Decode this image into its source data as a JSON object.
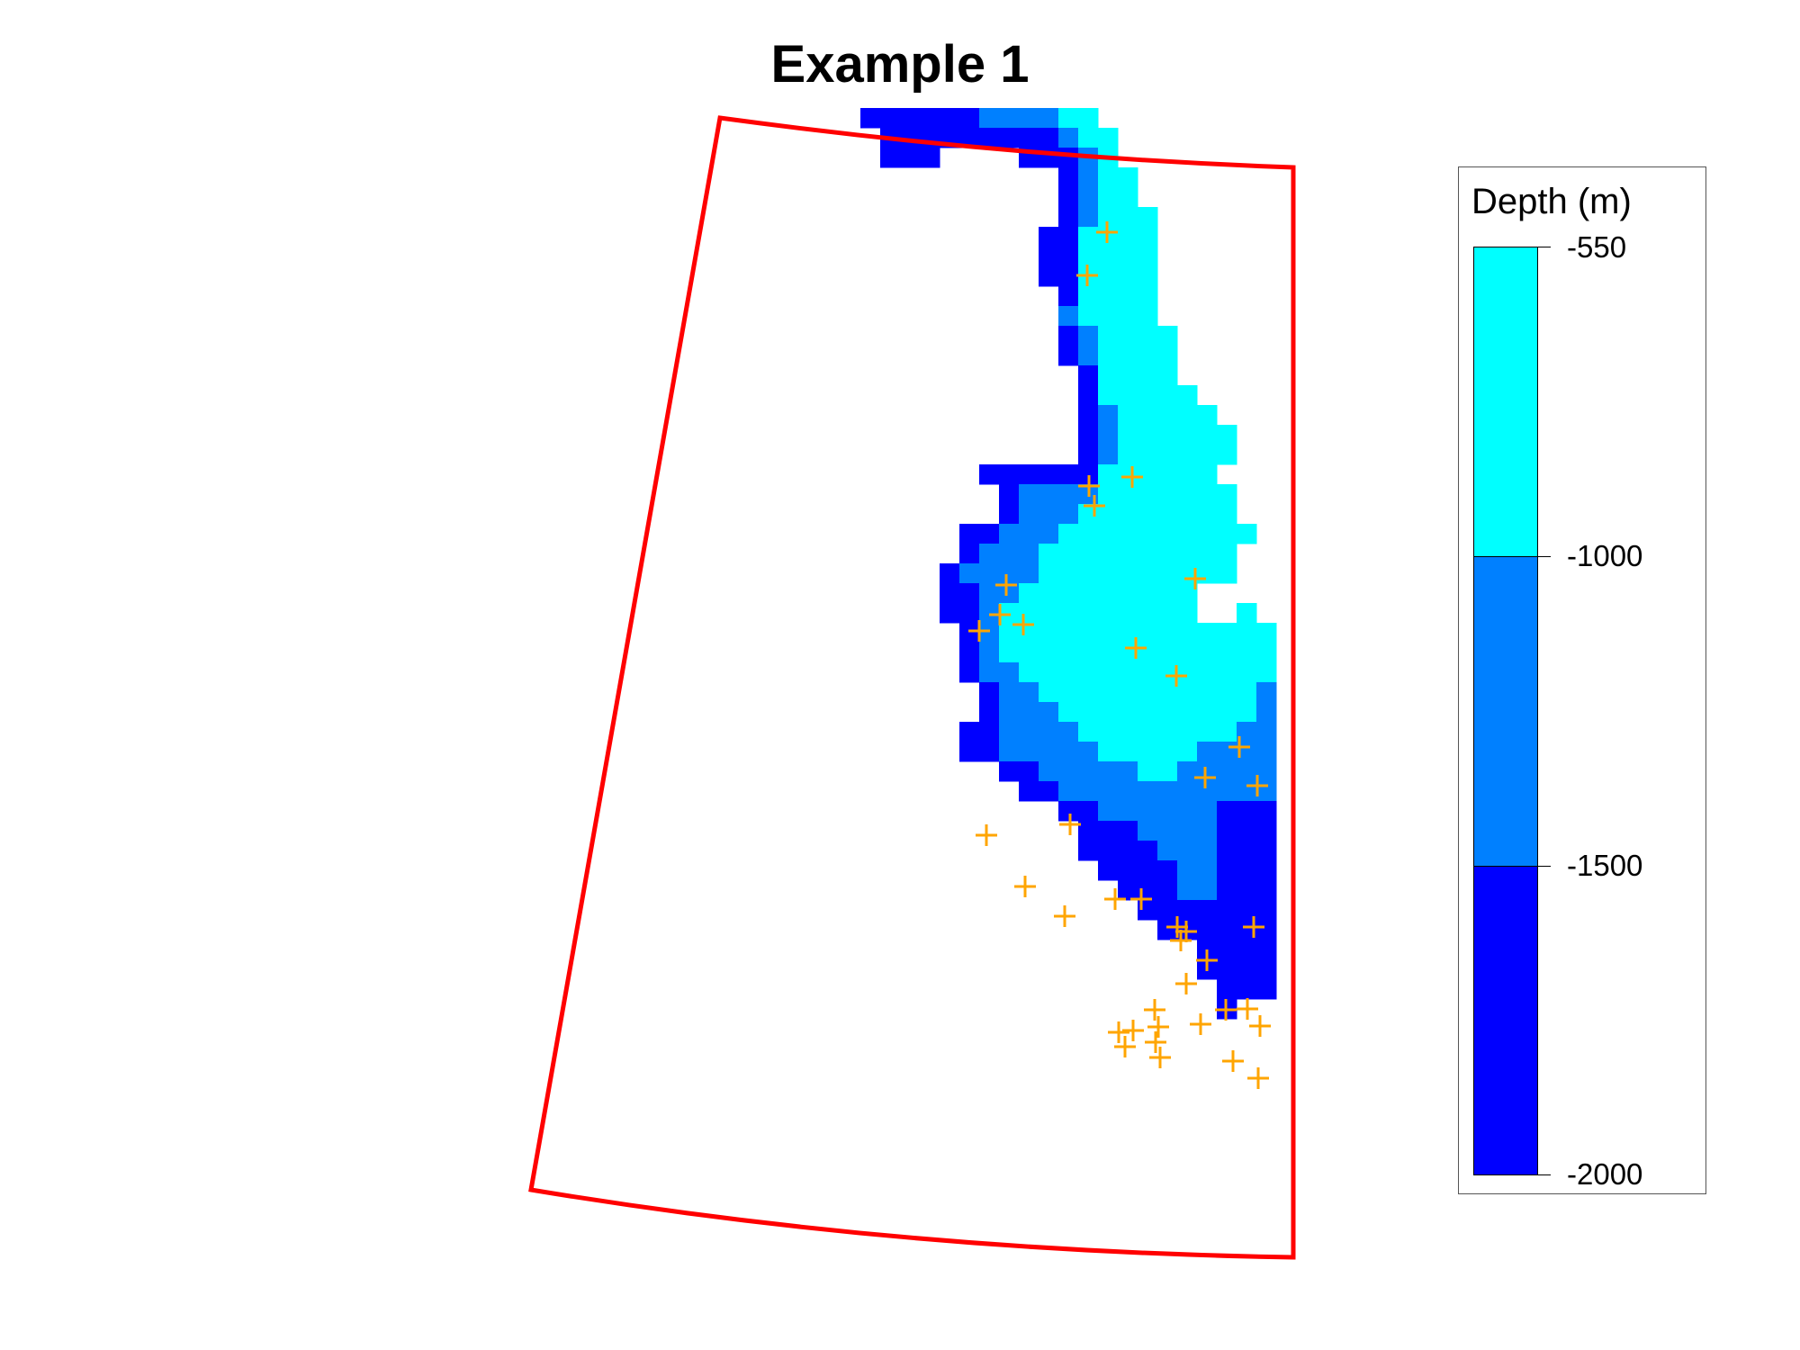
{
  "title": "Example 1",
  "legend": {
    "title": "Depth (m)",
    "breaks": [
      "-550",
      "-1000",
      "-1500",
      "-2000"
    ],
    "bands": [
      {
        "from": -550,
        "to": -1000,
        "color": "#00FFFF"
      },
      {
        "from": -1000,
        "to": -1500,
        "color": "#0080FF"
      },
      {
        "from": -1500,
        "to": -2000,
        "color": "#0000FF"
      }
    ]
  },
  "colors": {
    "shallow": "#00FFFF",
    "mid": "#0080FF",
    "deep": "#0000FF",
    "boundary": "#FF0000",
    "points": "#FFA500"
  },
  "map_symbols": {
    "boundary": "study-area-outline",
    "points": "orange-plus-markers"
  }
}
